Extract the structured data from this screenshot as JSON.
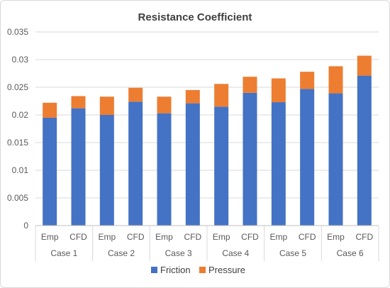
{
  "chart_data": {
    "type": "bar",
    "stacked": true,
    "title": "Resistance Coefficient",
    "xlabel": "",
    "ylabel": "",
    "ylim": [
      0,
      0.035
    ],
    "yticks": [
      "0",
      "0.005",
      "0.01",
      "0.015",
      "0.02",
      "0.025",
      "0.03",
      "0.035"
    ],
    "groups": [
      "Case 1",
      "Case 2",
      "Case 3",
      "Case 4",
      "Case 5",
      "Case 6"
    ],
    "subcategories": [
      "Emp",
      "CFD"
    ],
    "grid": true,
    "legend_position": "bottom",
    "series": [
      {
        "name": "Friction",
        "color": "#4472C4",
        "values": [
          0.0195,
          0.0212,
          0.02,
          0.0224,
          0.0203,
          0.0221,
          0.0215,
          0.024,
          0.0223,
          0.0247,
          0.0239,
          0.0271
        ]
      },
      {
        "name": "Pressure",
        "color": "#ED7D31",
        "values": [
          0.0027,
          0.0022,
          0.0033,
          0.0025,
          0.003,
          0.0024,
          0.0041,
          0.0029,
          0.0043,
          0.0031,
          0.0049,
          0.0036
        ]
      }
    ]
  }
}
